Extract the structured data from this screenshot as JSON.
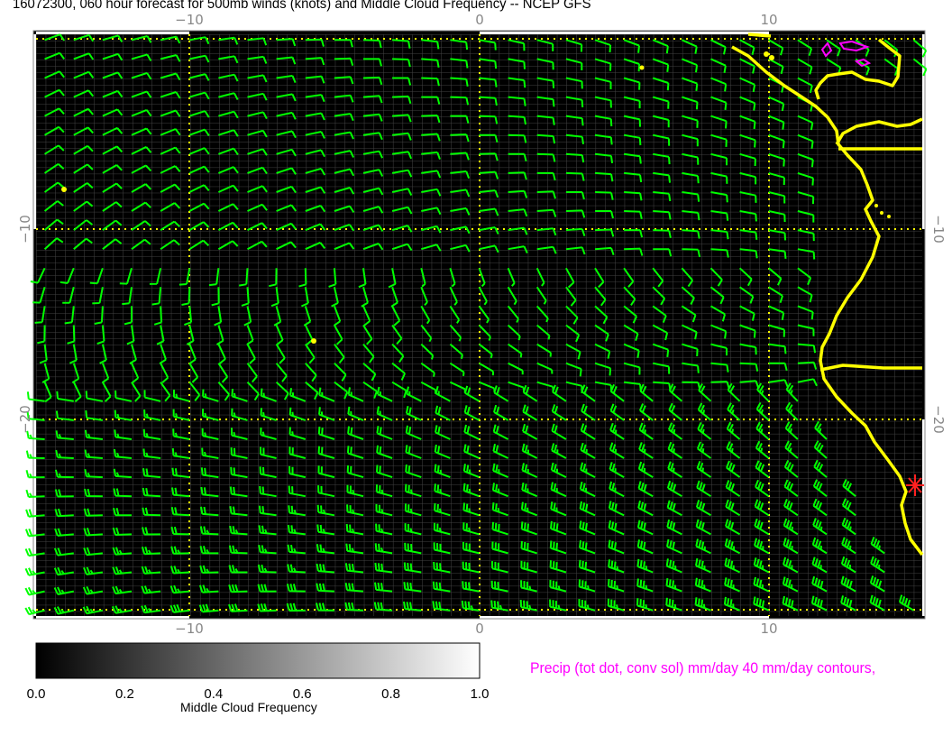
{
  "title": "16072300, 060 hour forecast for 500mb winds (knots) and Middle Cloud Frequency -- NCEP GFS",
  "map": {
    "lon_range": [
      -15.3,
      15.3
    ],
    "lat_range": [
      -30.3,
      0.3
    ],
    "x_ticks": [
      "−10",
      "0",
      "10"
    ],
    "y_ticks": [
      "−10",
      "−20"
    ],
    "wind_color": "#00ff00",
    "coast_color": "#ffff00",
    "precip_contour_color": "#ff00ff",
    "marker": "red-asterisk"
  },
  "colorbar": {
    "label": "Middle Cloud Frequency",
    "ticks": [
      "0.0",
      "0.2",
      "0.4",
      "0.6",
      "0.8",
      "1.0"
    ],
    "range": [
      0,
      1
    ],
    "colors": [
      "#000000",
      "#ffffff"
    ]
  },
  "legend": {
    "precip": "Precip (tot dot, conv sol) mm/day 40 mm/day contours,"
  }
}
